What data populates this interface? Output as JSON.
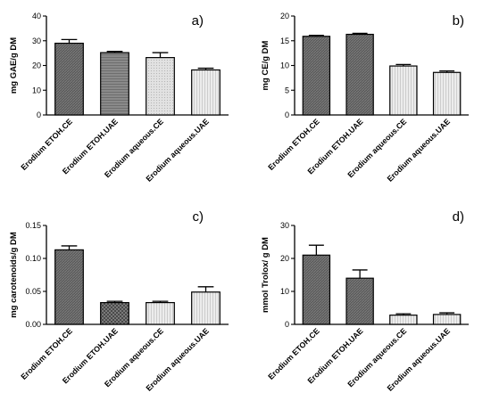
{
  "figure": {
    "patterns": [
      "dark-hatch",
      "mid-stripe",
      "light-dots",
      "light-stripe",
      "checker"
    ]
  },
  "chart_data": [
    {
      "type": "bar",
      "panel_label": "a)",
      "ylabel": "mg GAE/g DM",
      "ylim": [
        0,
        40
      ],
      "yticks": [
        0,
        10,
        20,
        30,
        40
      ],
      "tick_labels": [
        "0",
        "10",
        "20",
        "30",
        "40"
      ],
      "categories": [
        "Erodium ETOH.CE",
        "Erodium ETOH.UAE",
        "Erodium aqueous.CE",
        "Erodium aqueous.UAE"
      ],
      "values": [
        29.0,
        25.2,
        23.2,
        18.2
      ],
      "errors": [
        1.5,
        0.5,
        2.0,
        0.7
      ],
      "patterns": [
        "dark-hatch",
        "mid-stripe",
        "light-dots",
        "light-stripe"
      ],
      "grid": false
    },
    {
      "type": "bar",
      "panel_label": "b)",
      "ylabel": "mg CE/g DM",
      "ylim": [
        0,
        20
      ],
      "yticks": [
        0,
        5,
        10,
        15,
        20
      ],
      "tick_labels": [
        "0",
        "5",
        "10",
        "15",
        "20"
      ],
      "categories": [
        "Erodium ETOH.CE",
        "Erodium ETOH.UAE",
        "Erodium aqueous.CE",
        "Erodium aqueous.UAE"
      ],
      "values": [
        15.9,
        16.3,
        9.9,
        8.6
      ],
      "errors": [
        0.2,
        0.2,
        0.3,
        0.3
      ],
      "patterns": [
        "dark-hatch",
        "dark-hatch",
        "light-stripe",
        "light-stripe"
      ],
      "grid": false
    },
    {
      "type": "bar",
      "panel_label": "c)",
      "ylabel": "mg carotenoids/g DM",
      "ylim": [
        0,
        0.15
      ],
      "yticks": [
        0,
        0.05,
        0.1,
        0.15
      ],
      "tick_labels": [
        "0.00",
        "0.05",
        "0.10",
        "0.15"
      ],
      "categories": [
        "Erodium ETOH.CE",
        "Erodium ETOH.UAE",
        "Erodium aqueous.CE",
        "Erodium aqueous.UAE"
      ],
      "values": [
        0.113,
        0.033,
        0.033,
        0.049
      ],
      "errors": [
        0.006,
        0.002,
        0.002,
        0.008
      ],
      "patterns": [
        "dark-hatch",
        "checker",
        "light-stripe",
        "light-stripe"
      ],
      "grid": false
    },
    {
      "type": "bar",
      "panel_label": "d)",
      "ylabel": "mmol Trolox/ g DM",
      "ylim": [
        0,
        30
      ],
      "yticks": [
        0,
        10,
        20,
        30
      ],
      "tick_labels": [
        "0",
        "10",
        "20",
        "30"
      ],
      "categories": [
        "Erodium ETOH.CE",
        "Erodium ETOH.UAE",
        "Erodium aqueous.CE",
        "Erodium aqueous.UAE"
      ],
      "values": [
        21.0,
        14.0,
        2.8,
        3.0
      ],
      "errors": [
        3.0,
        2.5,
        0.4,
        0.5
      ],
      "patterns": [
        "dark-hatch",
        "dark-hatch",
        "light-stripe",
        "light-stripe"
      ],
      "grid": false
    }
  ]
}
